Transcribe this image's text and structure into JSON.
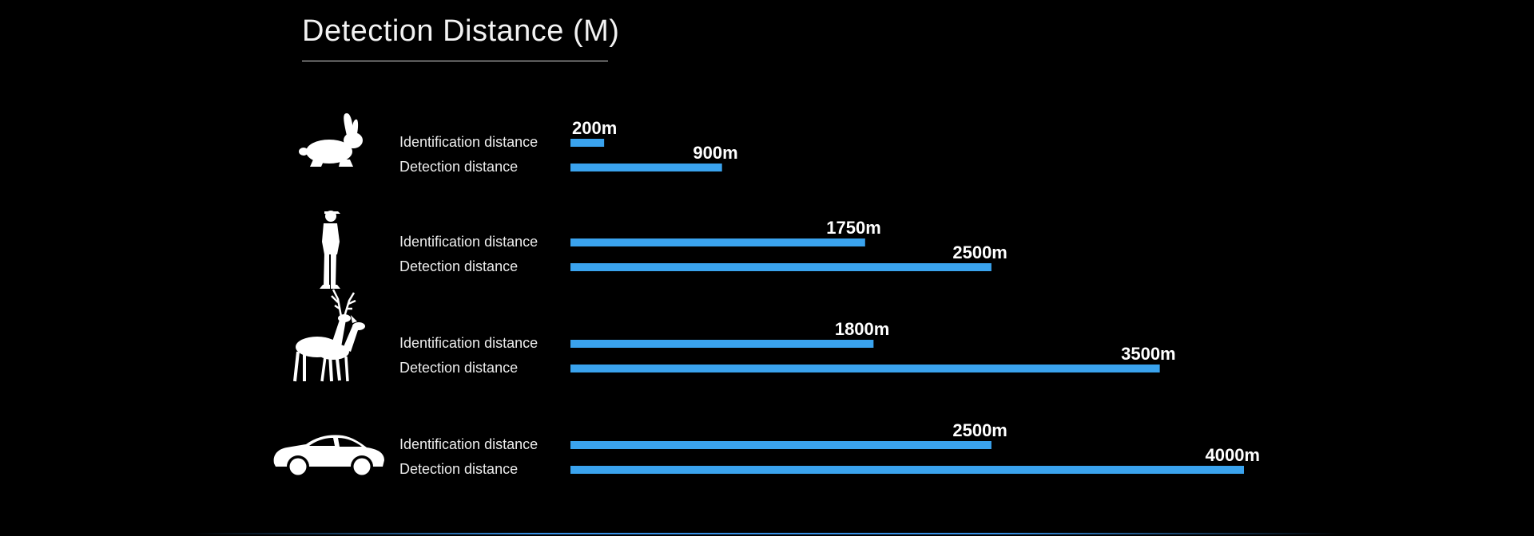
{
  "title": "Detection Distance (M)",
  "colors": {
    "background": "#000000",
    "bar": "#3aa3ee",
    "text": "#ffffff",
    "icon": "#ffffff"
  },
  "chart_data": {
    "type": "bar",
    "orientation": "horizontal",
    "title": "Detection Distance (M)",
    "xlim": [
      0,
      4000
    ],
    "grid": false,
    "groups": [
      {
        "icon": "rabbit-icon",
        "bars": [
          {
            "label": "Identification distance",
            "value": 200,
            "value_label": "200m"
          },
          {
            "label": "Detection distance",
            "value": 900,
            "value_label": "900m"
          }
        ]
      },
      {
        "icon": "person-icon",
        "bars": [
          {
            "label": "Identification distance",
            "value": 1750,
            "value_label": "1750m"
          },
          {
            "label": "Detection distance",
            "value": 2500,
            "value_label": "2500m"
          }
        ]
      },
      {
        "icon": "deer-icon",
        "bars": [
          {
            "label": "Identification distance",
            "value": 1800,
            "value_label": "1800m"
          },
          {
            "label": "Detection distance",
            "value": 3500,
            "value_label": "3500m"
          }
        ]
      },
      {
        "icon": "car-icon",
        "bars": [
          {
            "label": "Identification distance",
            "value": 2500,
            "value_label": "2500m"
          },
          {
            "label": "Detection distance",
            "value": 4000,
            "value_label": "4000m"
          }
        ]
      }
    ]
  }
}
